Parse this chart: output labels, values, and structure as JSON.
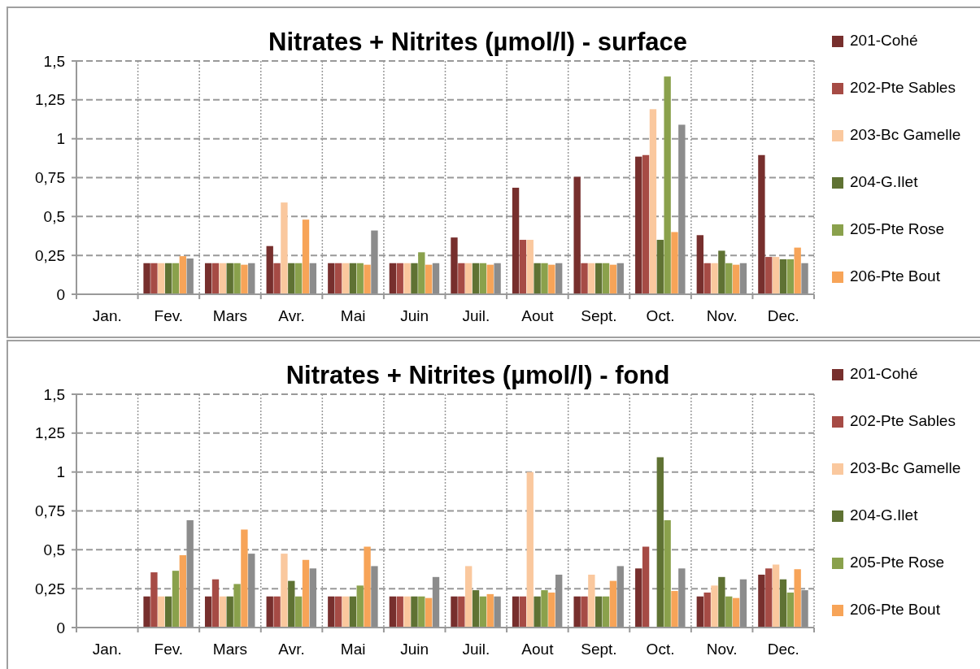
{
  "chart_data": [
    {
      "type": "bar",
      "title": "Nitrates + Nitrites (µmol/l) - surface",
      "categories": [
        "Jan.",
        "Fev.",
        "Mars",
        "Avr.",
        "Mai",
        "Juin",
        "Juil.",
        "Aout",
        "Sept.",
        "Oct.",
        "Nov.",
        "Dec."
      ],
      "ylim": [
        0,
        1.5
      ],
      "yticks": [
        {
          "value": 0,
          "label": "0"
        },
        {
          "value": 0.25,
          "label": "0,25"
        },
        {
          "value": 0.5,
          "label": "0,5"
        },
        {
          "value": 0.75,
          "label": "0,75"
        },
        {
          "value": 1,
          "label": "1"
        },
        {
          "value": 1.25,
          "label": "1,25"
        },
        {
          "value": 1.5,
          "label": "1,5"
        }
      ],
      "grid": true,
      "legend": "right",
      "series": [
        {
          "name": "201-Cohé",
          "color": "#772f2d",
          "values": [
            null,
            0.2,
            0.2,
            0.31,
            0.2,
            0.2,
            0.365,
            0.685,
            0.755,
            0.885,
            0.38,
            0.895
          ]
        },
        {
          "name": "202-Pte Sables",
          "color": "#a64b45",
          "values": [
            null,
            0.2,
            0.2,
            0.2,
            0.2,
            0.2,
            0.2,
            0.35,
            0.2,
            0.895,
            0.2,
            0.24
          ]
        },
        {
          "name": "203-Bc Gamelle",
          "color": "#fac89e",
          "values": [
            null,
            0.2,
            0.2,
            0.59,
            0.2,
            0.2,
            0.2,
            0.35,
            0.2,
            1.19,
            0.2,
            0.24
          ]
        },
        {
          "name": "204-G.Ilet",
          "color": "#5f7233",
          "values": [
            null,
            0.2,
            0.2,
            0.2,
            0.2,
            0.2,
            0.2,
            0.2,
            0.2,
            0.35,
            0.28,
            0.225
          ]
        },
        {
          "name": "205-Pte Rose",
          "color": "#8aa14c",
          "values": [
            null,
            0.2,
            0.2,
            0.2,
            0.2,
            0.27,
            0.2,
            0.2,
            0.2,
            1.4,
            0.2,
            0.225
          ]
        },
        {
          "name": "206-Pte Bout",
          "color": "#f7a458",
          "values": [
            null,
            0.245,
            0.19,
            0.48,
            0.19,
            0.19,
            0.19,
            0.19,
            0.19,
            0.4,
            0.19,
            0.3
          ]
        },
        {
          "color": "#8c8c8c",
          "values": [
            null,
            0.23,
            0.2,
            0.2,
            0.41,
            0.2,
            0.2,
            0.2,
            0.2,
            1.09,
            0.2,
            0.2
          ]
        }
      ]
    },
    {
      "type": "bar",
      "title": "Nitrates + Nitrites (µmol/l) - fond",
      "categories": [
        "Jan.",
        "Fev.",
        "Mars",
        "Avr.",
        "Mai",
        "Juin",
        "Juil.",
        "Aout",
        "Sept.",
        "Oct.",
        "Nov.",
        "Dec."
      ],
      "ylim": [
        0,
        1.5
      ],
      "yticks": [
        {
          "value": 0,
          "label": "0"
        },
        {
          "value": 0.25,
          "label": "0,25"
        },
        {
          "value": 0.5,
          "label": "0,5"
        },
        {
          "value": 0.75,
          "label": "0,75"
        },
        {
          "value": 1,
          "label": "1"
        },
        {
          "value": 1.25,
          "label": "1,25"
        },
        {
          "value": 1.5,
          "label": "1,5"
        }
      ],
      "grid": true,
      "legend": "right",
      "series": [
        {
          "name": "201-Cohé",
          "color": "#772f2d",
          "values": [
            null,
            0.2,
            0.2,
            0.2,
            0.2,
            0.2,
            0.2,
            0.2,
            0.2,
            0.38,
            0.2,
            0.34
          ]
        },
        {
          "name": "202-Pte Sables",
          "color": "#a64b45",
          "values": [
            null,
            0.355,
            0.31,
            0.2,
            0.2,
            0.2,
            0.2,
            0.2,
            0.2,
            0.52,
            0.225,
            0.38
          ]
        },
        {
          "name": "203-Bc Gamelle",
          "color": "#fac89e",
          "values": [
            null,
            0.2,
            0.2,
            0.475,
            0.2,
            0.2,
            0.395,
            1.0,
            0.34,
            null,
            0.27,
            0.405
          ]
        },
        {
          "name": "204-G.Ilet",
          "color": "#5f7233",
          "values": [
            null,
            0.2,
            0.2,
            0.3,
            0.2,
            0.2,
            0.24,
            0.2,
            0.2,
            1.095,
            0.325,
            0.31
          ]
        },
        {
          "name": "205-Pte Rose",
          "color": "#8aa14c",
          "values": [
            null,
            0.365,
            0.28,
            0.2,
            0.27,
            0.2,
            0.2,
            0.24,
            0.2,
            0.69,
            0.2,
            0.225
          ]
        },
        {
          "name": "206-Pte Bout",
          "color": "#f7a458",
          "values": [
            null,
            0.465,
            0.63,
            0.435,
            0.52,
            0.19,
            0.215,
            0.225,
            0.3,
            0.235,
            0.19,
            0.375
          ]
        },
        {
          "color": "#8c8c8c",
          "values": [
            null,
            0.69,
            0.475,
            0.38,
            0.395,
            0.325,
            0.2,
            0.34,
            0.395,
            0.38,
            0.31,
            0.24
          ]
        }
      ]
    }
  ]
}
